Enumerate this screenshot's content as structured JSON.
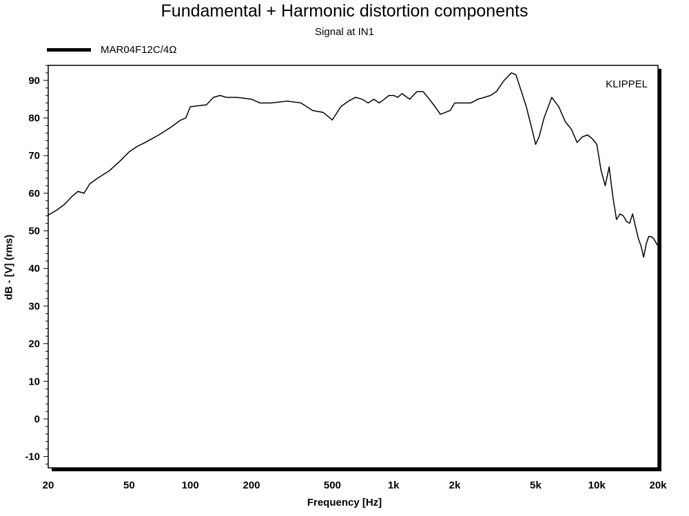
{
  "chart_data": {
    "type": "line",
    "title": "Fundamental + Harmonic distortion components",
    "subtitle": "Signal at IN1",
    "xlabel": "Frequency [Hz]",
    "ylabel": "dB - [V]  (rms)",
    "brand": "KLIPPEL",
    "x_scale": "log",
    "xlim": [
      20,
      20000
    ],
    "ylim": [
      -13,
      94
    ],
    "grid": true,
    "legend_position": "top-left",
    "x_ticks": [
      20,
      50,
      100,
      200,
      500,
      1000,
      2000,
      5000,
      10000,
      20000
    ],
    "x_tick_labels": [
      "20",
      "50",
      "100",
      "200",
      "500",
      "1k",
      "2k",
      "5k",
      "10k",
      "20k"
    ],
    "y_ticks": [
      -10,
      0,
      10,
      20,
      30,
      40,
      50,
      60,
      70,
      80,
      90
    ],
    "y_tick_labels": [
      "-10",
      "0",
      "10",
      "20",
      "30",
      "40",
      "50",
      "60",
      "70",
      "80",
      "90"
    ],
    "series": [
      {
        "name": "MAR04F12C/4Ω",
        "color": "#000000",
        "x": [
          20,
          22,
          24,
          26,
          28,
          30,
          32,
          35,
          40,
          45,
          50,
          55,
          60,
          70,
          80,
          90,
          95,
          100,
          120,
          130,
          140,
          150,
          170,
          200,
          220,
          250,
          300,
          350,
          400,
          450,
          500,
          550,
          600,
          650,
          700,
          750,
          800,
          850,
          900,
          950,
          1000,
          1050,
          1100,
          1200,
          1300,
          1400,
          1500,
          1600,
          1700,
          1800,
          1900,
          2000,
          2200,
          2400,
          2600,
          2800,
          3000,
          3200,
          3500,
          3800,
          4000,
          4200,
          4500,
          4800,
          5000,
          5200,
          5500,
          6000,
          6500,
          7000,
          7500,
          8000,
          8500,
          9000,
          9500,
          10000,
          10500,
          11000,
          11500,
          12000,
          12500,
          13000,
          13500,
          14000,
          14500,
          15000,
          16000,
          16500,
          17000,
          17500,
          18000,
          18500,
          19000,
          20000
        ],
        "y": [
          54.2,
          55.5,
          57.0,
          59.0,
          60.5,
          60.0,
          62.5,
          64.0,
          66.0,
          68.5,
          71.0,
          72.5,
          73.5,
          75.5,
          77.5,
          79.5,
          80.0,
          83.0,
          83.5,
          85.5,
          86.0,
          85.5,
          85.5,
          85.0,
          84.0,
          84.0,
          84.5,
          84.0,
          82.0,
          81.5,
          79.5,
          83.0,
          84.5,
          85.5,
          85.0,
          84.0,
          85.0,
          84.0,
          85.0,
          86.0,
          86.0,
          85.5,
          86.5,
          85.0,
          87.0,
          87.0,
          85.0,
          83.0,
          81.0,
          81.5,
          82.0,
          84.0,
          84.0,
          84.0,
          85.0,
          85.5,
          86.0,
          87.0,
          90.0,
          92.0,
          91.5,
          88.0,
          83.0,
          77.0,
          73.0,
          75.0,
          80.0,
          85.5,
          83.0,
          79.0,
          77.0,
          73.5,
          75.0,
          75.5,
          74.5,
          73.0,
          66.0,
          62.0,
          67.0,
          59.0,
          53.0,
          54.5,
          54.0,
          52.5,
          52.0,
          54.5,
          48.0,
          46.0,
          43.0,
          46.5,
          48.5,
          48.5,
          48.0,
          46.0
        ]
      }
    ]
  }
}
